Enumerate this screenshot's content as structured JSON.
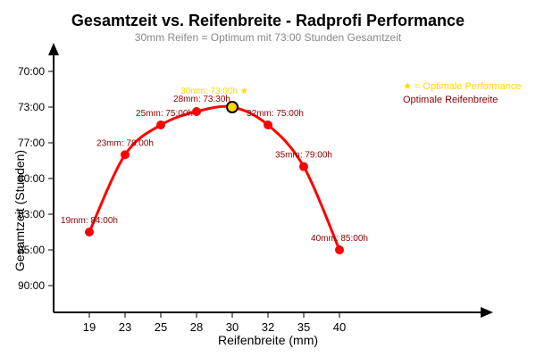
{
  "chart_data": {
    "type": "line",
    "title": "Gesamtzeit vs. Reifenbreite - Radprofi Performance",
    "subtitle": "30mm Reifen = Optimum mit 73:00 Stunden Gesamtzeit",
    "xlabel": "Reifenbreite (mm)",
    "ylabel": "Gesamtzeit (Stunden)",
    "x": [
      19,
      23,
      25,
      28,
      30,
      32,
      35,
      40
    ],
    "x_tick_labels": [
      "19",
      "23",
      "25",
      "28",
      "30",
      "32",
      "35",
      "40"
    ],
    "y_tick_labels": [
      "70:00",
      "73:00",
      "77:00",
      "80:00",
      "83:00",
      "85:00",
      "90:00"
    ],
    "y_scale": "inverted",
    "series": [
      {
        "values": [
          "84:00",
          "78:00",
          "75:00",
          "73:30",
          "73:00",
          "75:00",
          "79:00",
          "85:00"
        ],
        "color": "#ff0000"
      }
    ],
    "data_labels": [
      "19mm: 84:00h",
      "23mm: 78:00h",
      "25mm: 75:00h",
      "28mm: 73:30h",
      "30mm: 73:00h ★",
      "32mm: 75:00h",
      "35mm: 79:00h",
      "40mm: 85:00h"
    ],
    "highlight": {
      "x": 30,
      "value": "73:00"
    },
    "legend": {
      "placement": "top-right",
      "items": [
        "★ = Optimale Performance",
        "Optimale Reifenbreite"
      ]
    },
    "grid": false,
    "colors": {
      "line": "#ff0000",
      "highlight": "#ffd700",
      "label": "#8b0000",
      "axis": "#000000"
    }
  }
}
